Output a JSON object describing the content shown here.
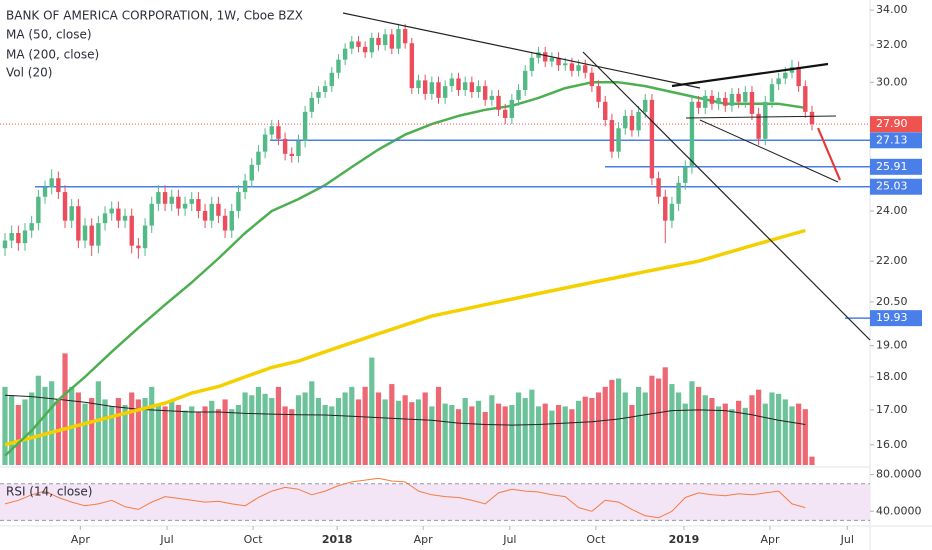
{
  "chart_data": {
    "type": "candlestick",
    "title": "BANK OF AMERICA CORPORATION, 1W, Cboe BZX",
    "indicators": [
      "MA (50, close)",
      "MA (200, close)",
      "Vol (20)"
    ],
    "rsi_title": "RSI (14, close)",
    "log_scale": true,
    "up_color": "#53b987",
    "down_color": "#eb4d5c",
    "ma50_color": "#4caf50",
    "ma200_color": "#f5d000",
    "volume_ma_color": "#222222",
    "rsi_color": "#f57c42",
    "level_color": "#4a7ee8",
    "last_price_color": "#ef5350",
    "xlim": [
      -0.75,
      129.7
    ],
    "xticks": [
      {
        "value": 11.3,
        "label": "Apr"
      },
      {
        "value": 24.3,
        "label": "Jul"
      },
      {
        "value": 37.2,
        "label": "Oct"
      },
      {
        "value": 49.8,
        "label": "2018"
      },
      {
        "value": 62.7,
        "label": "Apr"
      },
      {
        "value": 75.7,
        "label": "Jul"
      },
      {
        "value": 88.6,
        "label": "Oct"
      },
      {
        "value": 101.8,
        "label": "2019"
      },
      {
        "value": 114.7,
        "label": "Apr"
      },
      {
        "value": 126.3,
        "label": "Jul"
      }
    ],
    "ylim": [
      15.45,
      34.6
    ],
    "yticks": [
      {
        "value": 34,
        "label": "34.00"
      },
      {
        "value": 32,
        "label": "32.00"
      },
      {
        "value": 30,
        "label": "30.00"
      },
      {
        "value": 24,
        "label": "24.00"
      },
      {
        "value": 22,
        "label": "22.00"
      },
      {
        "value": 20.5,
        "label": "20.50"
      },
      {
        "value": 19,
        "label": "19.00"
      },
      {
        "value": 18,
        "label": "18.00"
      },
      {
        "value": 17,
        "label": "17.00"
      },
      {
        "value": 16,
        "label": "16.00"
      }
    ],
    "last_price": {
      "value": 27.9,
      "label": "27.90"
    },
    "levels": [
      27.13,
      25.91,
      25.03,
      19.93
    ],
    "ohlc": [
      [
        22.5,
        23.1,
        22.2,
        22.8
      ],
      [
        22.8,
        23.4,
        22.5,
        23.1
      ],
      [
        23.1,
        23.4,
        22.4,
        22.7
      ],
      [
        22.7,
        23.5,
        22.4,
        23.2
      ],
      [
        23.2,
        23.8,
        22.9,
        23.5
      ],
      [
        23.5,
        24.9,
        23.2,
        24.6
      ],
      [
        24.6,
        25.3,
        24.3,
        25.0
      ],
      [
        25.0,
        25.8,
        24.7,
        25.4
      ],
      [
        25.4,
        25.7,
        24.5,
        24.8
      ],
      [
        24.8,
        25.1,
        23.3,
        23.6
      ],
      [
        23.6,
        24.5,
        23.3,
        24.2
      ],
      [
        24.2,
        24.5,
        22.5,
        22.8
      ],
      [
        22.8,
        23.7,
        22.5,
        23.4
      ],
      [
        23.4,
        23.7,
        22.2,
        22.6
      ],
      [
        22.6,
        23.8,
        22.3,
        23.5
      ],
      [
        23.5,
        24.2,
        23.2,
        23.9
      ],
      [
        23.9,
        24.4,
        23.6,
        24.1
      ],
      [
        24.1,
        24.4,
        23.3,
        23.6
      ],
      [
        23.6,
        24.1,
        23.3,
        23.8
      ],
      [
        23.8,
        24.1,
        22.3,
        22.6
      ],
      [
        22.6,
        22.9,
        22.1,
        22.5
      ],
      [
        22.5,
        23.7,
        22.2,
        23.4
      ],
      [
        23.4,
        24.6,
        23.1,
        24.3
      ],
      [
        24.3,
        25.1,
        24.0,
        24.8
      ],
      [
        24.8,
        25.1,
        24.0,
        24.3
      ],
      [
        24.3,
        24.9,
        24.0,
        24.6
      ],
      [
        24.6,
        24.9,
        23.8,
        24.1
      ],
      [
        24.1,
        24.6,
        23.8,
        24.3
      ],
      [
        24.3,
        24.8,
        24.0,
        24.5
      ],
      [
        24.5,
        24.8,
        23.7,
        24.0
      ],
      [
        24.0,
        24.3,
        23.3,
        23.6
      ],
      [
        23.6,
        24.6,
        23.3,
        24.3
      ],
      [
        24.3,
        24.6,
        23.5,
        23.8
      ],
      [
        23.8,
        24.1,
        22.9,
        23.2
      ],
      [
        23.2,
        24.3,
        22.9,
        24.0
      ],
      [
        24.0,
        25.1,
        23.7,
        24.8
      ],
      [
        24.8,
        25.6,
        24.5,
        25.3
      ],
      [
        25.3,
        26.3,
        25.0,
        26.0
      ],
      [
        26.0,
        26.9,
        25.7,
        26.6
      ],
      [
        26.6,
        27.7,
        26.3,
        27.4
      ],
      [
        27.4,
        28.1,
        27.1,
        27.8
      ],
      [
        27.8,
        28.1,
        26.9,
        27.2
      ],
      [
        27.2,
        27.5,
        26.2,
        26.5
      ],
      [
        26.5,
        26.8,
        26.1,
        26.4
      ],
      [
        26.4,
        27.4,
        26.1,
        27.1
      ],
      [
        27.1,
        28.8,
        26.8,
        28.5
      ],
      [
        28.5,
        29.5,
        28.2,
        29.2
      ],
      [
        29.2,
        29.8,
        28.9,
        29.5
      ],
      [
        29.5,
        30.1,
        29.2,
        29.8
      ],
      [
        29.8,
        30.8,
        29.5,
        30.5
      ],
      [
        30.5,
        31.5,
        30.2,
        31.2
      ],
      [
        31.2,
        32.1,
        30.9,
        31.8
      ],
      [
        31.8,
        32.5,
        31.5,
        32.2
      ],
      [
        32.2,
        32.5,
        31.6,
        31.9
      ],
      [
        31.9,
        32.2,
        31.3,
        31.6
      ],
      [
        31.6,
        32.7,
        31.3,
        32.4
      ],
      [
        32.4,
        32.7,
        31.7,
        32.0
      ],
      [
        32.0,
        32.9,
        31.7,
        32.6
      ],
      [
        32.6,
        32.9,
        31.5,
        31.8
      ],
      [
        31.8,
        33.2,
        31.5,
        32.9
      ],
      [
        32.9,
        33.2,
        31.8,
        32.1
      ],
      [
        32.1,
        32.4,
        29.4,
        29.7
      ],
      [
        29.7,
        30.4,
        29.4,
        30.1
      ],
      [
        30.1,
        30.4,
        29.1,
        29.4
      ],
      [
        29.4,
        30.3,
        29.1,
        30.0
      ],
      [
        30.0,
        30.3,
        28.9,
        29.2
      ],
      [
        29.2,
        30.1,
        28.9,
        29.8
      ],
      [
        29.8,
        30.5,
        29.5,
        30.2
      ],
      [
        30.2,
        30.5,
        29.3,
        29.6
      ],
      [
        29.6,
        30.3,
        29.3,
        30.0
      ],
      [
        30.0,
        30.3,
        29.2,
        29.5
      ],
      [
        29.5,
        30.1,
        29.2,
        29.8
      ],
      [
        29.8,
        30.1,
        28.8,
        29.1
      ],
      [
        29.1,
        29.6,
        28.8,
        29.3
      ],
      [
        29.3,
        29.6,
        28.3,
        28.6
      ],
      [
        28.6,
        28.9,
        27.9,
        28.2
      ],
      [
        28.2,
        29.4,
        27.9,
        29.1
      ],
      [
        29.1,
        29.9,
        28.8,
        29.6
      ],
      [
        29.6,
        30.9,
        29.3,
        30.6
      ],
      [
        30.6,
        31.6,
        30.3,
        31.3
      ],
      [
        31.3,
        31.9,
        31.0,
        31.6
      ],
      [
        31.6,
        31.9,
        30.8,
        31.1
      ],
      [
        31.1,
        31.6,
        30.8,
        31.3
      ],
      [
        31.3,
        31.6,
        30.6,
        30.9
      ],
      [
        30.9,
        31.3,
        30.6,
        31.0
      ],
      [
        31.0,
        31.3,
        30.3,
        30.6
      ],
      [
        30.6,
        31.2,
        30.3,
        30.9
      ],
      [
        30.9,
        31.2,
        30.2,
        30.5
      ],
      [
        30.5,
        30.8,
        29.5,
        29.8
      ],
      [
        29.8,
        30.1,
        28.7,
        29.0
      ],
      [
        29.0,
        29.3,
        27.8,
        28.1
      ],
      [
        28.1,
        28.4,
        26.3,
        26.6
      ],
      [
        26.6,
        28.0,
        26.3,
        27.7
      ],
      [
        27.7,
        28.6,
        27.4,
        28.3
      ],
      [
        28.3,
        28.6,
        27.3,
        27.6
      ],
      [
        27.6,
        28.8,
        27.3,
        28.5
      ],
      [
        28.5,
        29.4,
        28.2,
        29.1
      ],
      [
        29.1,
        29.4,
        25.1,
        25.4
      ],
      [
        25.4,
        25.7,
        24.3,
        24.6
      ],
      [
        24.6,
        24.9,
        22.7,
        23.6
      ],
      [
        23.6,
        24.6,
        23.3,
        24.3
      ],
      [
        24.3,
        25.5,
        24.0,
        25.2
      ],
      [
        25.2,
        26.2,
        24.9,
        25.9
      ],
      [
        25.9,
        29.3,
        25.6,
        29.0
      ],
      [
        29.0,
        29.3,
        28.4,
        28.7
      ],
      [
        28.7,
        29.6,
        28.4,
        29.3
      ],
      [
        29.3,
        29.6,
        28.6,
        28.9
      ],
      [
        28.9,
        29.5,
        28.6,
        29.2
      ],
      [
        29.2,
        29.5,
        28.5,
        28.8
      ],
      [
        28.8,
        29.7,
        28.5,
        29.4
      ],
      [
        29.4,
        29.7,
        28.7,
        29.0
      ],
      [
        29.0,
        29.8,
        28.7,
        29.5
      ],
      [
        29.5,
        29.8,
        28.1,
        28.4
      ],
      [
        28.4,
        28.7,
        26.9,
        27.2
      ],
      [
        27.2,
        29.3,
        26.9,
        29.0
      ],
      [
        29.0,
        30.2,
        28.7,
        29.9
      ],
      [
        29.9,
        30.5,
        29.6,
        30.2
      ],
      [
        30.2,
        30.8,
        29.9,
        30.5
      ],
      [
        30.5,
        31.2,
        30.2,
        30.8
      ],
      [
        30.8,
        31.1,
        29.5,
        29.8
      ],
      [
        29.8,
        30.1,
        28.2,
        28.5
      ],
      [
        28.5,
        28.8,
        27.6,
        27.9
      ]
    ],
    "volume_ylim": [
      0,
      860
    ],
    "volume": [
      560,
      500,
      430,
      470,
      520,
      640,
      560,
      600,
      470,
      800,
      560,
      520,
      440,
      480,
      600,
      470,
      420,
      480,
      430,
      520,
      470,
      480,
      560,
      440,
      420,
      460,
      430,
      390,
      420,
      380,
      420,
      460,
      400,
      470,
      400,
      430,
      520,
      500,
      560,
      510,
      480,
      560,
      420,
      400,
      500,
      520,
      600,
      480,
      430,
      420,
      480,
      520,
      560,
      470,
      560,
      770,
      520,
      470,
      580,
      460,
      500,
      450,
      470,
      520,
      420,
      560,
      440,
      430,
      400,
      480,
      420,
      460,
      380,
      500,
      440,
      420,
      430,
      520,
      480,
      540,
      420,
      440,
      390,
      430,
      420,
      400,
      460,
      490,
      480,
      520,
      560,
      610,
      620,
      520,
      430,
      560,
      520,
      640,
      620,
      700,
      580,
      520,
      440,
      600,
      560,
      500,
      480,
      420,
      440,
      400,
      460,
      410,
      500,
      540,
      440,
      520,
      510,
      470,
      420,
      440,
      400,
      60
    ],
    "ma_x": [
      0,
      4,
      8,
      12,
      16,
      20,
      24,
      28,
      32,
      36,
      40,
      44,
      48,
      52,
      56,
      60,
      64,
      68,
      72,
      76,
      80,
      84,
      88,
      92,
      96,
      100,
      104,
      108,
      112,
      116,
      120
    ],
    "ma50": [
      15.7,
      16.4,
      17.3,
      18.0,
      18.8,
      19.6,
      20.4,
      21.2,
      22.1,
      23.1,
      24.0,
      24.5,
      25.1,
      25.9,
      26.7,
      27.4,
      27.9,
      28.3,
      28.6,
      28.8,
      29.2,
      29.7,
      30.0,
      30.0,
      29.8,
      29.5,
      29.2,
      28.9,
      28.9,
      28.9,
      28.7
    ],
    "ma200": [
      16.0,
      16.2,
      16.4,
      16.6,
      16.8,
      17.0,
      17.2,
      17.5,
      17.7,
      18.0,
      18.3,
      18.5,
      18.8,
      19.1,
      19.4,
      19.7,
      20.0,
      20.2,
      20.4,
      20.6,
      20.8,
      21.0,
      21.2,
      21.4,
      21.6,
      21.8,
      22.0,
      22.3,
      22.6,
      22.9,
      23.2
    ],
    "volume_ma": [
      500,
      490,
      470,
      450,
      420,
      400,
      390,
      380,
      380,
      370,
      365,
      360,
      358,
      350,
      340,
      330,
      320,
      300,
      290,
      286,
      290,
      300,
      310,
      330,
      360,
      390,
      395,
      390,
      360,
      320,
      290
    ],
    "rsi_ylim": [
      25,
      85
    ],
    "rsi_yticks": [
      {
        "value": 80,
        "label": "80.0000"
      },
      {
        "value": 40,
        "label": "40.0000"
      }
    ],
    "rsi_levels": [
      70,
      30
    ],
    "rsi_x": [
      0,
      2,
      4,
      6,
      8,
      10,
      12,
      14,
      16,
      18,
      20,
      22,
      24,
      26,
      28,
      30,
      32,
      34,
      36,
      38,
      40,
      42,
      44,
      46,
      48,
      50,
      52,
      54,
      56,
      58,
      60,
      62,
      64,
      66,
      68,
      70,
      72,
      74,
      76,
      78,
      80,
      82,
      84,
      86,
      88,
      90,
      92,
      94,
      96,
      98,
      100,
      102,
      104,
      106,
      108,
      110,
      112,
      114,
      116,
      118,
      120
    ],
    "rsi": [
      48,
      52,
      58,
      62,
      55,
      50,
      46,
      48,
      52,
      45,
      42,
      50,
      56,
      54,
      52,
      50,
      51,
      48,
      46,
      55,
      62,
      66,
      64,
      58,
      62,
      68,
      72,
      74,
      76,
      73,
      72,
      62,
      58,
      56,
      55,
      52,
      48,
      60,
      64,
      62,
      61,
      58,
      56,
      44,
      40,
      52,
      50,
      42,
      35,
      33,
      40,
      55,
      60,
      58,
      57,
      59,
      58,
      60,
      62,
      48,
      44
    ]
  }
}
